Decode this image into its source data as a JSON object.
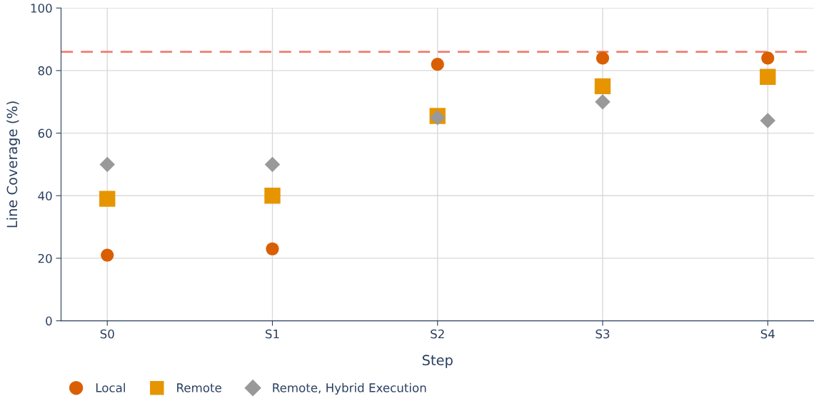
{
  "chart_data": {
    "type": "scatter",
    "xlabel": "Step",
    "ylabel": "Line Coverage (%)",
    "categories": [
      "S0",
      "S1",
      "S2",
      "S3",
      "S4"
    ],
    "series": [
      {
        "name": "Local",
        "color": "#d95f02",
        "marker": "circle",
        "values": [
          21,
          23,
          82,
          84,
          84
        ]
      },
      {
        "name": "Remote",
        "color": "#e69500",
        "marker": "square",
        "values": [
          39,
          40,
          65.5,
          75,
          78
        ]
      },
      {
        "name": "Remote, Hybrid Execution",
        "color": "#999999",
        "marker": "diamond",
        "values": [
          50,
          50,
          65,
          70,
          64
        ]
      }
    ],
    "ylim": [
      0,
      100
    ],
    "yticks": [
      0,
      20,
      40,
      60,
      80,
      100
    ],
    "ref_lines": [
      {
        "axis": "y",
        "value": 86,
        "color": "#ef7f6f",
        "line_style": "dashed"
      }
    ],
    "grid": true,
    "legend": "bottom"
  }
}
